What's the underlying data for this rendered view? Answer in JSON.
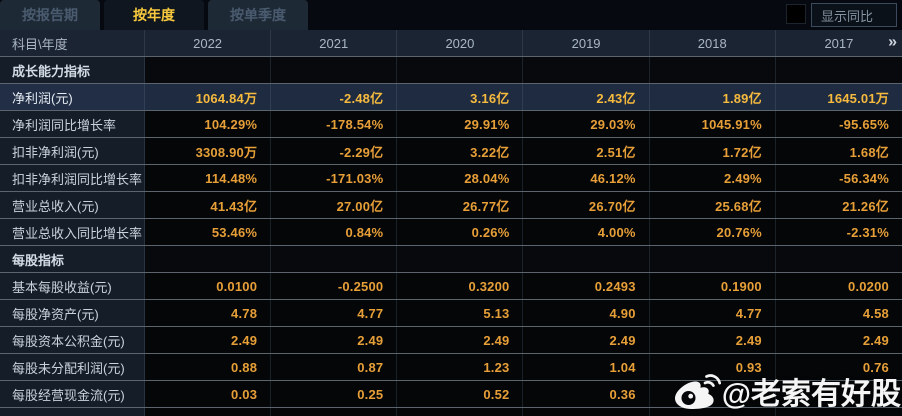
{
  "tabs": [
    {
      "label": "按报告期",
      "active": false
    },
    {
      "label": "按年度",
      "active": true
    },
    {
      "label": "按单季度",
      "active": false
    }
  ],
  "controls": {
    "show_yoy_label": "显示同比",
    "checkbox_checked": false
  },
  "table": {
    "corner_label": "科目\\年度",
    "years": [
      "2022",
      "2021",
      "2020",
      "2019",
      "2018",
      "2017"
    ],
    "more_icon": "»",
    "rows": [
      {
        "type": "section",
        "label": "成长能力指标",
        "values": [
          "",
          "",
          "",
          "",
          "",
          ""
        ]
      },
      {
        "type": "data",
        "highlight": true,
        "label": "净利润(元)",
        "values": [
          "1064.84万",
          "-2.48亿",
          "3.16亿",
          "2.43亿",
          "1.89亿",
          "1645.01万"
        ]
      },
      {
        "type": "data",
        "label": "净利润同比增长率",
        "values": [
          "104.29%",
          "-178.54%",
          "29.91%",
          "29.03%",
          "1045.91%",
          "-95.65%"
        ]
      },
      {
        "type": "data",
        "label": "扣非净利润(元)",
        "values": [
          "3308.90万",
          "-2.29亿",
          "3.22亿",
          "2.51亿",
          "1.72亿",
          "1.68亿"
        ]
      },
      {
        "type": "data",
        "label": "扣非净利润同比增长率",
        "values": [
          "114.48%",
          "-171.03%",
          "28.04%",
          "46.12%",
          "2.49%",
          "-56.34%"
        ]
      },
      {
        "type": "data",
        "label": "营业总收入(元)",
        "values": [
          "41.43亿",
          "27.00亿",
          "26.77亿",
          "26.70亿",
          "25.68亿",
          "21.26亿"
        ]
      },
      {
        "type": "data",
        "label": "营业总收入同比增长率",
        "values": [
          "53.46%",
          "0.84%",
          "0.26%",
          "4.00%",
          "20.76%",
          "-2.31%"
        ]
      },
      {
        "type": "section",
        "label": "每股指标",
        "values": [
          "",
          "",
          "",
          "",
          "",
          ""
        ]
      },
      {
        "type": "data",
        "label": "基本每股收益(元)",
        "values": [
          "0.0100",
          "-0.2500",
          "0.3200",
          "0.2493",
          "0.1900",
          "0.0200"
        ]
      },
      {
        "type": "data",
        "label": "每股净资产(元)",
        "values": [
          "4.78",
          "4.77",
          "5.13",
          "4.90",
          "4.77",
          "4.58"
        ]
      },
      {
        "type": "data",
        "label": "每股资本公积金(元)",
        "values": [
          "2.49",
          "2.49",
          "2.49",
          "2.49",
          "2.49",
          "2.49"
        ]
      },
      {
        "type": "data",
        "label": "每股未分配利润(元)",
        "values": [
          "0.88",
          "0.87",
          "1.23",
          "1.04",
          "0.93",
          "0.76"
        ]
      },
      {
        "type": "data",
        "label": "每股经营现金流(元)",
        "values": [
          "0.03",
          "0.25",
          "0.52",
          "0.36",
          "",
          ""
        ]
      }
    ]
  },
  "watermark": {
    "text": "@老索有好股",
    "icon": "weibo-icon"
  },
  "colors": {
    "value_gold": "#e79f38",
    "highlight_value_gold": "#f6ba3e",
    "active_tab_text": "#f8c93d",
    "highlight_row_bg": "#1f2b40",
    "header_row_bg": "#1b2433",
    "label_column_bg": "#151d29",
    "data_cell_bg": "#050608"
  }
}
